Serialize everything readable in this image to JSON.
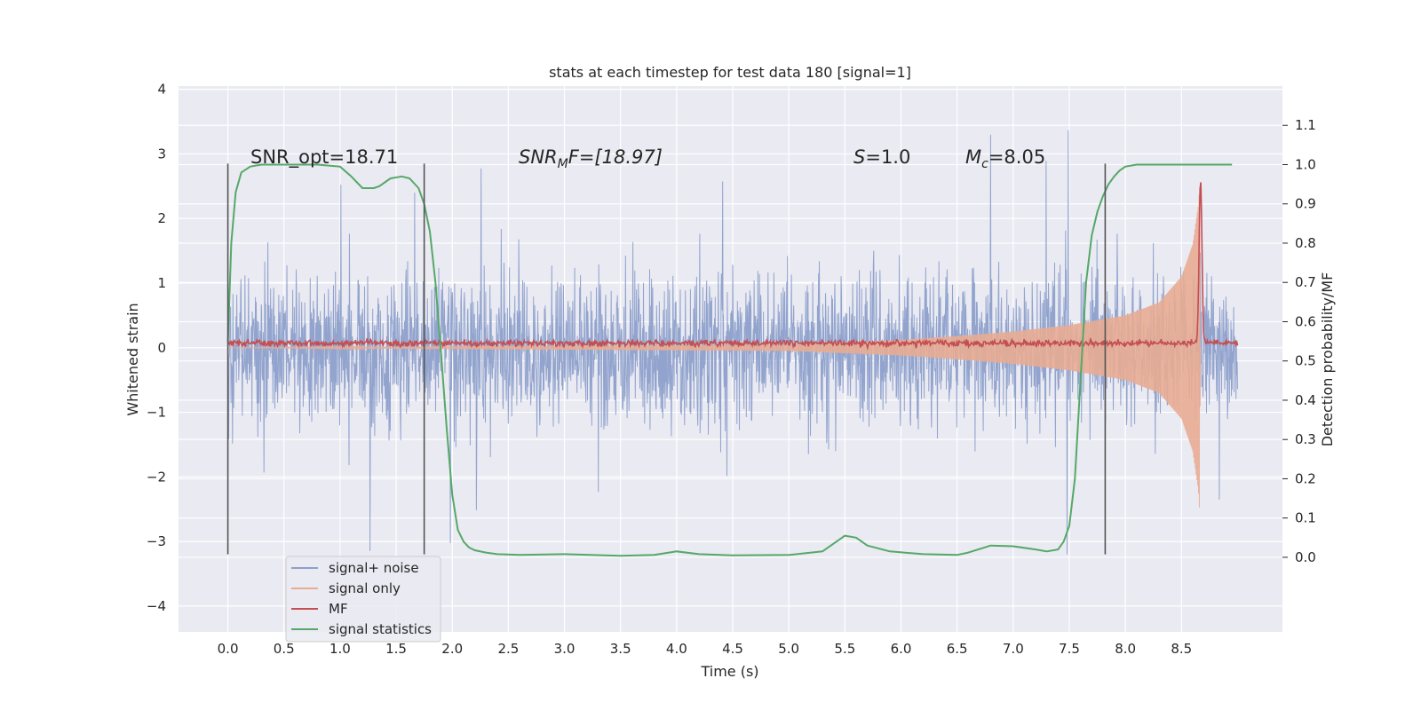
{
  "chart_data": {
    "type": "line",
    "title": "stats at each timestep for test data 180 [signal=1]",
    "xlabel": "Time (s)",
    "ylabel": "Whitened strain",
    "y2label": "Detection probability/MF",
    "xlim": [
      -0.44,
      9.4
    ],
    "ylim": [
      -4.4,
      4.05
    ],
    "y2lim": [
      -0.19,
      1.2
    ],
    "x_ticks": [
      "0.0",
      "0.5",
      "1.0",
      "1.5",
      "2.0",
      "2.5",
      "3.0",
      "3.5",
      "4.0",
      "4.5",
      "5.0",
      "5.5",
      "6.0",
      "6.5",
      "7.0",
      "7.5",
      "8.0",
      "8.5"
    ],
    "y_ticks": [
      "4",
      "3",
      "2",
      "1",
      "0",
      "−1",
      "−2",
      "−3",
      "−4"
    ],
    "y2_ticks": [
      "1.1",
      "1.0",
      "0.9",
      "0.8",
      "0.7",
      "0.6",
      "0.5",
      "0.4",
      "0.3",
      "0.2",
      "0.1",
      "0.0"
    ],
    "grid": true,
    "legend_position": "lower-left",
    "series": [
      {
        "name": "signal+ noise",
        "axis": "left",
        "color": "#8da0cb",
        "description_range": [
          -3.2,
          3.7
        ],
        "x_range": [
          0.0,
          9.0
        ],
        "noise_std": 0.8
      },
      {
        "name": "signal only",
        "axis": "left",
        "color": "#e8ac94",
        "envelope": {
          "x": [
            0.0,
            5.0,
            6.0,
            6.5,
            7.0,
            7.5,
            8.0,
            8.3,
            8.5,
            8.6,
            8.65,
            8.66,
            8.67
          ],
          "amp": [
            0.0,
            0.05,
            0.12,
            0.18,
            0.25,
            0.35,
            0.5,
            0.7,
            1.1,
            1.6,
            2.2,
            2.5,
            0.0
          ]
        }
      },
      {
        "name": "MF",
        "axis": "left",
        "color": "#c44e52",
        "baseline": 0.07,
        "spike": {
          "x": 8.67,
          "y": 2.6
        }
      },
      {
        "name": "signal statistics",
        "axis": "right",
        "color": "#55a868",
        "x": [
          0.0,
          0.03,
          0.07,
          0.12,
          0.2,
          0.3,
          0.5,
          0.8,
          1.0,
          1.1,
          1.2,
          1.3,
          1.35,
          1.45,
          1.55,
          1.62,
          1.7,
          1.75,
          1.8,
          1.85,
          1.9,
          1.95,
          2.0,
          2.05,
          2.1,
          2.15,
          2.2,
          2.3,
          2.4,
          2.6,
          3.0,
          3.5,
          3.8,
          4.0,
          4.2,
          4.5,
          5.0,
          5.3,
          5.4,
          5.5,
          5.6,
          5.7,
          5.9,
          6.2,
          6.5,
          6.6,
          6.8,
          7.0,
          7.2,
          7.3,
          7.4,
          7.45,
          7.5,
          7.55,
          7.6,
          7.65,
          7.7,
          7.75,
          7.8,
          7.85,
          7.9,
          7.95,
          8.0,
          8.1,
          8.2,
          8.3,
          8.5,
          8.8,
          8.95
        ],
        "y": [
          0.55,
          0.8,
          0.93,
          0.98,
          0.995,
          1.0,
          1.0,
          1.0,
          0.995,
          0.97,
          0.94,
          0.94,
          0.945,
          0.965,
          0.97,
          0.965,
          0.94,
          0.9,
          0.83,
          0.7,
          0.52,
          0.33,
          0.16,
          0.07,
          0.04,
          0.025,
          0.018,
          0.012,
          0.008,
          0.006,
          0.008,
          0.004,
          0.006,
          0.015,
          0.008,
          0.005,
          0.006,
          0.015,
          0.035,
          0.055,
          0.05,
          0.03,
          0.015,
          0.008,
          0.006,
          0.012,
          0.03,
          0.028,
          0.02,
          0.015,
          0.02,
          0.04,
          0.08,
          0.2,
          0.45,
          0.7,
          0.82,
          0.88,
          0.92,
          0.95,
          0.97,
          0.985,
          0.995,
          1.0,
          1.0,
          1.0,
          1.0,
          1.0,
          1.0
        ]
      }
    ],
    "vertical_markers": [
      {
        "x": 0.0,
        "color": "#555555",
        "y_from": -3.2,
        "y_to": 2.85
      },
      {
        "x": 1.75,
        "color": "#555555",
        "y_from": -3.2,
        "y_to": 2.85
      },
      {
        "x": 7.82,
        "color": "#555555",
        "y_from": -3.2,
        "y_to": 2.85
      }
    ],
    "annotations": [
      {
        "text": "SNR_opt=18.71",
        "x": 0.2,
        "y": 2.9
      },
      {
        "text": "SNR_MF=[18.97]",
        "x": 2.6,
        "y": 2.9
      },
      {
        "text": "S=1.0",
        "x": 5.6,
        "y": 2.9
      },
      {
        "text": "M_c=8.05",
        "x": 6.6,
        "y": 2.9
      }
    ]
  },
  "legend": {
    "items": [
      {
        "label": "signal+ noise",
        "color": "#8da0cb"
      },
      {
        "label": "signal only",
        "color": "#e8ac94"
      },
      {
        "label": "MF",
        "color": "#c44e52"
      },
      {
        "label": "signal statistics",
        "color": "#55a868"
      }
    ]
  },
  "annotation_text": {
    "snr_opt": "SNR_opt=18.71",
    "snr_mf_prefix": "SNR",
    "snr_mf_sub": "M",
    "snr_mf_rest": "F=[18.97]",
    "s_var": "S",
    "s_rest": "=1.0",
    "mc_var": "M",
    "mc_sub": "c",
    "mc_rest": "=8.05"
  },
  "colors": {
    "axes_bg": "#eaeaf2",
    "grid": "#ffffff",
    "text": "#262626"
  }
}
